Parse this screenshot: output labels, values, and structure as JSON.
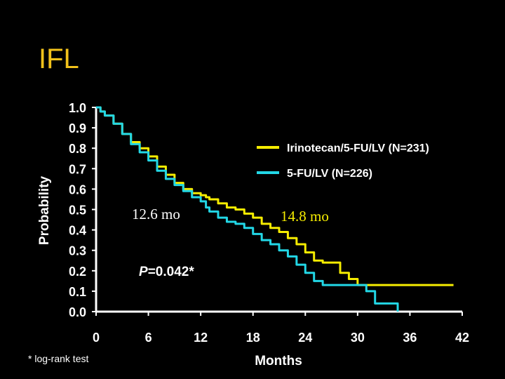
{
  "title": "IFL",
  "footnote": "* log-rank test",
  "chart_data": {
    "type": "line",
    "title": "IFL",
    "xlabel": "Months",
    "ylabel": "Probability",
    "xlim": [
      0,
      42
    ],
    "ylim": [
      0.0,
      1.0
    ],
    "x_ticks": [
      "0",
      "6",
      "12",
      "18",
      "24",
      "30",
      "36",
      "42"
    ],
    "y_ticks": [
      "1.0",
      "0.9",
      "0.8",
      "0.7",
      "0.6",
      "0.5",
      "0.4",
      "0.3",
      "0.2",
      "0.1",
      "0.0"
    ],
    "grid": false,
    "legend_position": "top-right",
    "series": [
      {
        "name": "Irinotecan/5-FU/LV (N=231)",
        "color": "#f5ec00",
        "x": [
          0,
          0.5,
          1,
          2,
          3,
          4,
          5,
          6,
          7,
          8,
          9,
          10,
          11,
          12,
          12.6,
          13,
          14,
          15,
          16,
          17,
          18,
          19,
          20,
          21,
          22,
          23,
          24,
          25,
          26,
          27,
          28,
          29,
          30,
          32,
          34,
          36,
          38,
          40,
          41
        ],
        "y": [
          1.0,
          0.98,
          0.96,
          0.92,
          0.87,
          0.83,
          0.8,
          0.76,
          0.71,
          0.67,
          0.63,
          0.6,
          0.58,
          0.57,
          0.56,
          0.55,
          0.53,
          0.51,
          0.5,
          0.48,
          0.46,
          0.43,
          0.41,
          0.39,
          0.36,
          0.33,
          0.29,
          0.25,
          0.24,
          0.24,
          0.19,
          0.16,
          0.13,
          0.13,
          0.13,
          0.13,
          0.13,
          0.13,
          0.13
        ]
      },
      {
        "name": "5-FU/LV (N=226)",
        "color": "#22d7e6",
        "x": [
          0,
          0.5,
          1,
          2,
          3,
          4,
          5,
          6,
          7,
          8,
          9,
          10,
          11,
          12,
          12.6,
          13,
          14,
          15,
          16,
          17,
          18,
          19,
          20,
          21,
          22,
          23,
          24,
          25,
          26,
          27,
          28,
          29,
          30,
          31,
          32,
          33,
          34,
          34.6
        ],
        "y": [
          1.0,
          0.98,
          0.96,
          0.92,
          0.87,
          0.82,
          0.78,
          0.74,
          0.69,
          0.65,
          0.62,
          0.59,
          0.56,
          0.54,
          0.51,
          0.49,
          0.46,
          0.44,
          0.43,
          0.41,
          0.38,
          0.35,
          0.33,
          0.3,
          0.27,
          0.23,
          0.19,
          0.15,
          0.13,
          0.13,
          0.13,
          0.13,
          0.13,
          0.1,
          0.04,
          0.04,
          0.04,
          0.0
        ]
      }
    ],
    "annotations": {
      "median_irinotecan": "14.8 mo",
      "median_5fu": "12.6 mo",
      "p_value_prefix": "P",
      "p_value_suffix": "=0.042*"
    },
    "median_irinotecan_color": "#f5ec00",
    "median_5fu_color": "#ffffff",
    "axis_color": "#ffffff",
    "background_color": "#000000"
  }
}
